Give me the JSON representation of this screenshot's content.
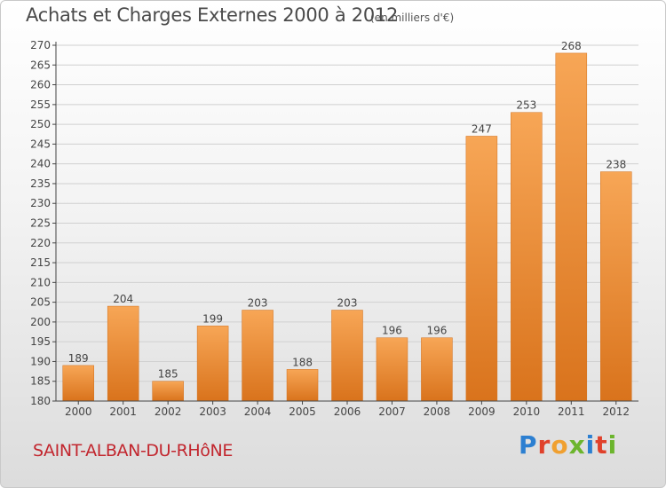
{
  "chart_title": "Achats et Charges Externes 2000 à 2012",
  "chart_subtitle": "(en milliers d'€)",
  "location": "SAINT-ALBAN-DU-RHôNE",
  "brand": {
    "text": "Proxiti",
    "letter_colors": [
      "#2c7fd1",
      "#e0412b",
      "#f0a030",
      "#6cb52d",
      "#2c7fd1",
      "#e0412b",
      "#6cb52d"
    ]
  },
  "colors": {
    "bar_light": "#f7a656",
    "bar_dark": "#d9731c",
    "axis": "#444444",
    "grid": "#d0d0d0"
  },
  "chart_data": {
    "type": "bar",
    "title": "Achats et Charges Externes 2000 à 2012",
    "subtitle": "(en milliers d'€)",
    "categories": [
      "2000",
      "2001",
      "2002",
      "2003",
      "2004",
      "2005",
      "2006",
      "2007",
      "2008",
      "2009",
      "2010",
      "2011",
      "2012"
    ],
    "values": [
      189,
      204,
      185,
      199,
      203,
      188,
      203,
      196,
      196,
      247,
      253,
      268,
      238
    ],
    "ylim": [
      180,
      270
    ],
    "yticks": [
      180,
      185,
      190,
      195,
      200,
      205,
      210,
      215,
      220,
      225,
      230,
      235,
      240,
      245,
      250,
      255,
      260,
      265,
      270
    ],
    "grid": true,
    "xlabel": "",
    "ylabel": ""
  }
}
